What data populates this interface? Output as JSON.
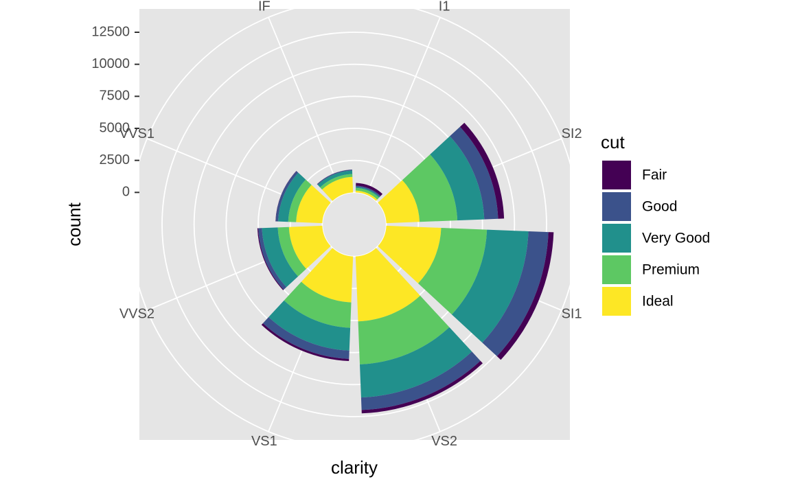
{
  "chart_data": {
    "type": "bar",
    "coord": "polar",
    "stacked": true,
    "xlabel": "clarity",
    "ylabel": "count",
    "categories": [
      "I1",
      "SI2",
      "SI1",
      "VS2",
      "VS1",
      "VVS2",
      "VVS1",
      "IF"
    ],
    "y_ticks": [
      0,
      2500,
      5000,
      7500,
      10000,
      12500
    ],
    "y_tick_labels": [
      "0",
      "2500",
      "5000",
      "7500",
      "10000",
      "12500"
    ],
    "ylim": [
      -2500,
      15000
    ],
    "grid": true,
    "legend": {
      "title": "cut",
      "position": "right",
      "entries": [
        "Fair",
        "Good",
        "Very Good",
        "Premium",
        "Ideal"
      ]
    },
    "series": [
      {
        "name": "Fair",
        "color": "#440154",
        "values": [
          210,
          466,
          408,
          261,
          170,
          69,
          17,
          9
        ]
      },
      {
        "name": "Good",
        "color": "#3B528B",
        "values": [
          96,
          1081,
          1560,
          978,
          648,
          286,
          186,
          71
        ]
      },
      {
        "name": "Very Good",
        "color": "#21908C",
        "values": [
          84,
          2100,
          3240,
          2591,
          1775,
          1235,
          789,
          268
        ]
      },
      {
        "name": "Premium",
        "color": "#5DC863",
        "values": [
          205,
          2949,
          3575,
          3357,
          1989,
          870,
          616,
          230
        ]
      },
      {
        "name": "Ideal",
        "color": "#FDE725",
        "values": [
          146,
          2598,
          4282,
          5071,
          3589,
          2606,
          2047,
          1212
        ]
      }
    ]
  },
  "colors": {
    "panel_background": "#E5E5E5",
    "grid": "#FFFFFF",
    "tick_label": "#4D4D4D"
  }
}
